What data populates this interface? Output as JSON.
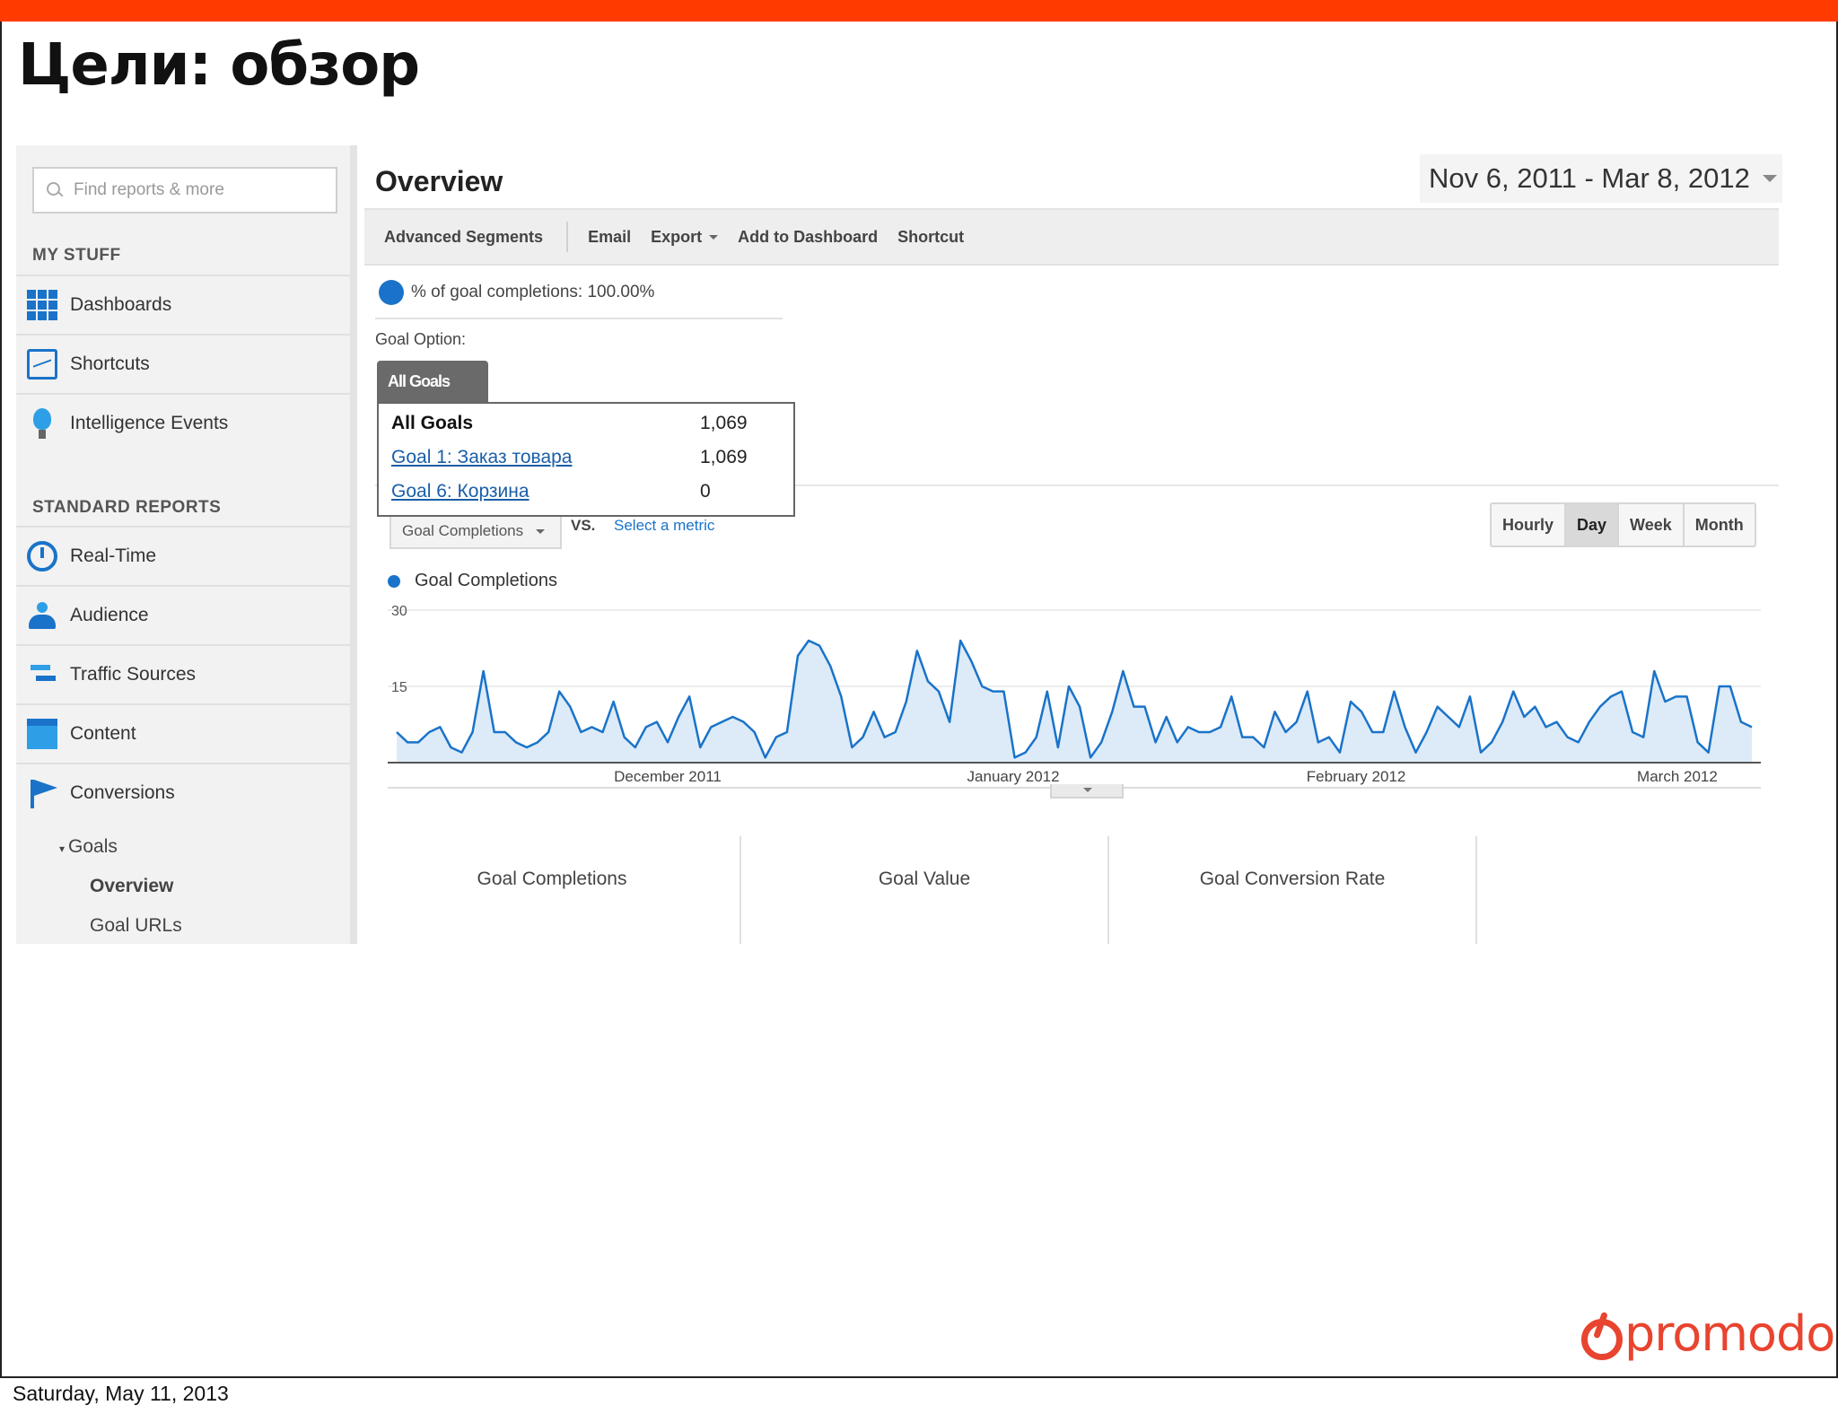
{
  "slide": {
    "title": "Цели: обзор",
    "accent_color": "#ff3b00",
    "footer_date": "Saturday, May 11, 2013",
    "logo_text": "promodo",
    "logo_color": "#e8442f"
  },
  "sidebar": {
    "search_placeholder": "Find reports & more",
    "my_stuff_heading": "MY STUFF",
    "my_stuff_items": [
      {
        "label": "Dashboards",
        "icon": "dashboard-grid-icon"
      },
      {
        "label": "Shortcuts",
        "icon": "shortcut-icon"
      },
      {
        "label": "Intelligence Events",
        "icon": "lightbulb-icon"
      }
    ],
    "standard_heading": "STANDARD REPORTS",
    "standard_items": [
      {
        "label": "Real-Time",
        "icon": "realtime-clock-icon"
      },
      {
        "label": "Audience",
        "icon": "audience-people-icon"
      },
      {
        "label": "Traffic Sources",
        "icon": "traffic-arrows-icon"
      },
      {
        "label": "Content",
        "icon": "content-window-icon"
      },
      {
        "label": "Conversions",
        "icon": "conversion-flag-icon"
      }
    ],
    "goals_label": "Goals",
    "goals_sub": [
      "Overview",
      "Goal URLs"
    ]
  },
  "main": {
    "title": "Overview",
    "date_range": "Nov 6, 2011 - Mar 8, 2012",
    "toolbar": {
      "advanced_segments": "Advanced Segments",
      "email": "Email",
      "export": "Export",
      "add_to_dashboard": "Add to Dashboard",
      "shortcut": "Shortcut"
    },
    "pct_completions": "% of goal completions: 100.00%",
    "goal_option_label": "Goal Option:",
    "goal_tab": "All Goals",
    "goal_popup": [
      {
        "label": "All Goals",
        "value": "1,069"
      },
      {
        "label": "Goal 1: Заказ товара",
        "value": "1,069"
      },
      {
        "label": "Goal 6: Корзина",
        "value": "0"
      }
    ],
    "metric_selector": "Goal Completions",
    "vs_label": "VS.",
    "select_metric": "Select a metric",
    "periods": [
      "Hourly",
      "Day",
      "Week",
      "Month"
    ],
    "active_period": "Day",
    "legend": "Goal Completions",
    "kpis": [
      "Goal Completions",
      "Goal Value",
      "Goal Conversion Rate"
    ]
  },
  "chart_data": {
    "type": "area",
    "series": [
      {
        "name": "Goal Completions",
        "color": "#1a73c9",
        "values": [
          6,
          4,
          4,
          6,
          7,
          3,
          2,
          6,
          18,
          6,
          6,
          4,
          3,
          4,
          6,
          14,
          11,
          6,
          7,
          6,
          12,
          5,
          3,
          7,
          8,
          4,
          9,
          13,
          3,
          7,
          8,
          9,
          8,
          6,
          1,
          5,
          6,
          21,
          24,
          23,
          19,
          13,
          3,
          5,
          10,
          5,
          6,
          12,
          22,
          16,
          14,
          8,
          24,
          20,
          15,
          14,
          14,
          1,
          2,
          5,
          14,
          3,
          15,
          11,
          1,
          4,
          10,
          18,
          11,
          11,
          4,
          9,
          4,
          7,
          6,
          6,
          7,
          13,
          5,
          5,
          3,
          10,
          6,
          8,
          14,
          4,
          5,
          2,
          12,
          10,
          6,
          6,
          14,
          7,
          2,
          6,
          11,
          9,
          7,
          13,
          2,
          4,
          8,
          14,
          9,
          11,
          7,
          8,
          5,
          4,
          8,
          11,
          13,
          14,
          6,
          5,
          18,
          12,
          13,
          13,
          4,
          2,
          15,
          15,
          8,
          7
        ]
      }
    ],
    "x_labels": [
      "December 2011",
      "January 2012",
      "February 2012",
      "March 2012"
    ],
    "y_ticks": [
      30,
      15
    ],
    "ylim": [
      0,
      30
    ],
    "grid": true
  }
}
